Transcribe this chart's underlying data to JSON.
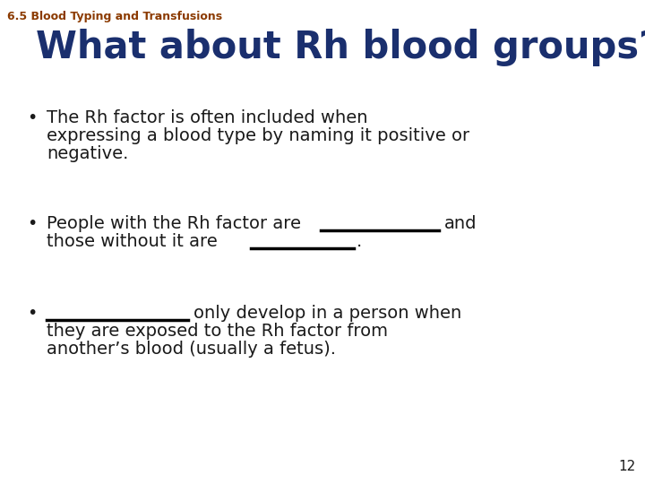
{
  "background_color": "#ffffff",
  "header_text": "6.5 Blood Typing and Transfusions",
  "header_color": "#8B3A00",
  "header_fontsize": 9,
  "title_text": "What about Rh blood groups?",
  "title_color": "#1a2f6e",
  "title_fontsize": 30,
  "bullet_color": "#1a1a1a",
  "bullet_fontsize": 14,
  "page_number": "12",
  "page_number_color": "#1a1a1a",
  "page_number_fontsize": 11,
  "underline_color": "#000000",
  "bullet_marker": "•",
  "bullet1_lines": [
    "The Rh factor is often included when",
    "expressing a blood type by naming it positive or",
    "negative."
  ],
  "bullet3_lines": [
    "they are exposed to the Rh factor from",
    "another’s blood (usually a fetus)."
  ]
}
